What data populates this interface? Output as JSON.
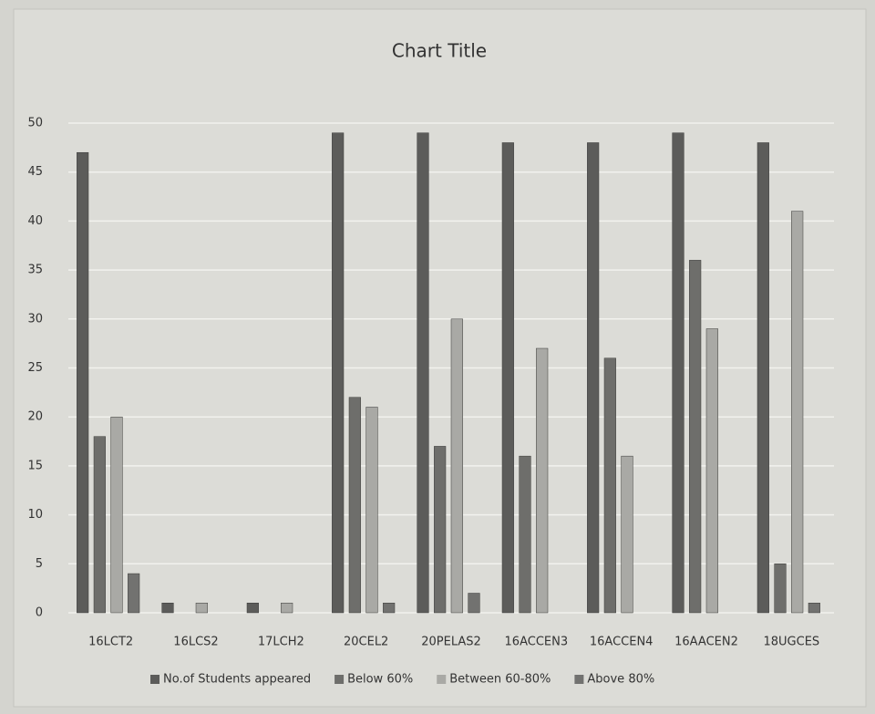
{
  "chart_data": {
    "type": "bar",
    "title": "Chart Title",
    "categories": [
      "16LCT2",
      "16LCS2",
      "17LCH2",
      "20CEL2",
      "20PELAS2",
      "16ACCEN3",
      "16ACCEN4",
      "16AACEN2",
      "18UGCES"
    ],
    "series": [
      {
        "name": "No.of Students appeared",
        "color": "#5c5c5a",
        "values": [
          47,
          1,
          1,
          49,
          49,
          48,
          48,
          49,
          48
        ]
      },
      {
        "name": "Below 60%",
        "color": "#6e6e6b",
        "values": [
          18,
          0,
          0,
          22,
          17,
          16,
          26,
          36,
          5
        ]
      },
      {
        "name": "Between 60-80%",
        "color": "#a9a9a5",
        "values": [
          20,
          1,
          1,
          21,
          30,
          27,
          16,
          29,
          41
        ]
      },
      {
        "name": "Above 80%",
        "color": "#727270",
        "values": [
          4,
          0,
          0,
          1,
          2,
          0,
          0,
          0,
          1
        ]
      }
    ],
    "ylim": [
      0,
      50
    ],
    "yticks": [
      0,
      5,
      10,
      15,
      20,
      25,
      30,
      35,
      40,
      45,
      50
    ],
    "grid": true,
    "legend": "bottom"
  }
}
